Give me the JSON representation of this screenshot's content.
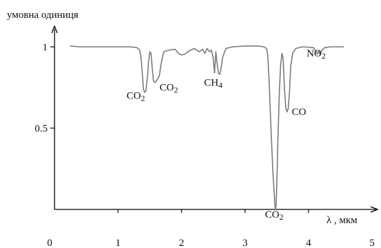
{
  "chart_data": {
    "type": "line",
    "title": "",
    "ylabel": "умовна одиниця",
    "xlabel": "λ , мкм",
    "xlim": [
      0,
      5
    ],
    "ylim": [
      0,
      1.1
    ],
    "x_ticks": [
      {
        "value": 0,
        "label": "0"
      },
      {
        "value": 1,
        "label": "1"
      },
      {
        "value": 2,
        "label": "2"
      },
      {
        "value": 3,
        "label": "3"
      },
      {
        "value": 4,
        "label": "4"
      },
      {
        "value": 5,
        "label": "5"
      }
    ],
    "y_ticks": [
      {
        "value": 0.5,
        "label": "0.5"
      },
      {
        "value": 1,
        "label": "1"
      }
    ],
    "series": [
      {
        "color": "#7a7a7a",
        "points": [
          [
            0.25,
            1.005
          ],
          [
            0.4,
            1.0
          ],
          [
            0.6,
            1.0
          ],
          [
            0.8,
            1.0
          ],
          [
            1.0,
            1.0
          ],
          [
            1.2,
            1.0
          ],
          [
            1.3,
            0.995
          ],
          [
            1.34,
            0.98
          ],
          [
            1.36,
            0.94
          ],
          [
            1.38,
            0.85
          ],
          [
            1.4,
            0.74
          ],
          [
            1.42,
            0.72
          ],
          [
            1.44,
            0.73
          ],
          [
            1.46,
            0.8
          ],
          [
            1.48,
            0.9
          ],
          [
            1.5,
            0.97
          ],
          [
            1.52,
            0.96
          ],
          [
            1.54,
            0.86
          ],
          [
            1.56,
            0.79
          ],
          [
            1.58,
            0.78
          ],
          [
            1.6,
            0.79
          ],
          [
            1.62,
            0.8
          ],
          [
            1.65,
            0.82
          ],
          [
            1.68,
            0.9
          ],
          [
            1.72,
            0.97
          ],
          [
            1.8,
            0.98
          ],
          [
            1.9,
            0.985
          ],
          [
            1.95,
            0.96
          ],
          [
            2.0,
            0.95
          ],
          [
            2.05,
            0.955
          ],
          [
            2.12,
            0.975
          ],
          [
            2.2,
            0.99
          ],
          [
            2.28,
            0.97
          ],
          [
            2.33,
            0.985
          ],
          [
            2.37,
            0.96
          ],
          [
            2.4,
            0.99
          ],
          [
            2.44,
            0.97
          ],
          [
            2.47,
            0.98
          ],
          [
            2.5,
            0.93
          ],
          [
            2.52,
            0.84
          ],
          [
            2.54,
            0.97
          ],
          [
            2.56,
            0.9
          ],
          [
            2.58,
            0.84
          ],
          [
            2.6,
            0.83
          ],
          [
            2.62,
            0.86
          ],
          [
            2.65,
            0.94
          ],
          [
            2.7,
            0.99
          ],
          [
            2.8,
            1.0
          ],
          [
            3.0,
            1.005
          ],
          [
            3.2,
            1.005
          ],
          [
            3.3,
            1.0
          ],
          [
            3.34,
            0.99
          ],
          [
            3.36,
            0.94
          ],
          [
            3.38,
            0.78
          ],
          [
            3.4,
            0.58
          ],
          [
            3.42,
            0.4
          ],
          [
            3.44,
            0.22
          ],
          [
            3.46,
            0.1
          ],
          [
            3.47,
            0.03
          ],
          [
            3.48,
            0.0
          ],
          [
            3.49,
            0.03
          ],
          [
            3.5,
            0.15
          ],
          [
            3.52,
            0.45
          ],
          [
            3.54,
            0.72
          ],
          [
            3.56,
            0.88
          ],
          [
            3.58,
            0.96
          ],
          [
            3.6,
            0.93
          ],
          [
            3.62,
            0.75
          ],
          [
            3.64,
            0.63
          ],
          [
            3.66,
            0.6
          ],
          [
            3.68,
            0.62
          ],
          [
            3.7,
            0.72
          ],
          [
            3.72,
            0.88
          ],
          [
            3.75,
            0.96
          ],
          [
            3.8,
            0.99
          ],
          [
            3.9,
            1.0
          ],
          [
            4.0,
            0.998
          ],
          [
            4.08,
            0.995
          ],
          [
            4.12,
            0.97
          ],
          [
            4.14,
            0.955
          ],
          [
            4.16,
            0.975
          ],
          [
            4.18,
            0.955
          ],
          [
            4.2,
            0.97
          ],
          [
            4.22,
            0.98
          ],
          [
            4.25,
            0.995
          ],
          [
            4.35,
            1.0
          ],
          [
            4.5,
            1.0
          ],
          [
            4.55,
            1.0
          ]
        ]
      }
    ],
    "annotations": [
      {
        "text": "CO2",
        "x": 1.28,
        "y": 0.68,
        "align": "middle"
      },
      {
        "text": "CO2",
        "x": 1.8,
        "y": 0.73,
        "align": "middle"
      },
      {
        "text": "CH4",
        "x": 2.5,
        "y": 0.76,
        "align": "middle"
      },
      {
        "text": "CO2",
        "x": 3.46,
        "y": -0.05,
        "align": "middle"
      },
      {
        "text": "CO",
        "x": 3.85,
        "y": 0.58,
        "align": "middle"
      },
      {
        "text": "NO2",
        "x": 4.12,
        "y": 0.94,
        "align": "middle"
      }
    ]
  }
}
